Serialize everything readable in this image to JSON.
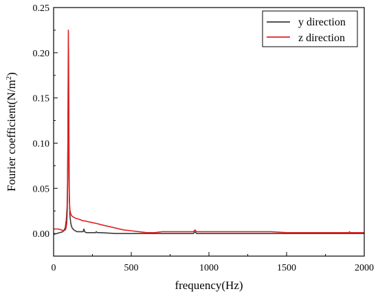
{
  "chart_data": {
    "type": "line",
    "xlabel": "frequency(Hz)",
    "ylabel_main": "Fourier coefficient(N/m",
    "ylabel_sup": "2",
    "ylabel_close": ")",
    "xlim": [
      0,
      2000
    ],
    "ylim": [
      -0.025,
      0.25
    ],
    "x_ticks": [
      0,
      500,
      1000,
      1500,
      2000
    ],
    "x_tick_labels": [
      "0",
      "500",
      "1000",
      "1500",
      "2000"
    ],
    "y_ticks": [
      0.0,
      0.05,
      0.1,
      0.15,
      0.2,
      0.25
    ],
    "y_tick_labels": [
      "0.00",
      "0.05",
      "0.10",
      "0.15",
      "0.20",
      "0.25"
    ],
    "grid": false,
    "legend_position": "top-right",
    "series": [
      {
        "name": "y direction",
        "color": "#3a3a3a",
        "x": [
          0,
          20,
          40,
          60,
          75,
          82,
          87,
          90,
          92,
          94,
          96,
          98,
          100,
          102,
          105,
          110,
          115,
          120,
          130,
          150,
          180,
          190,
          195,
          200,
          210,
          250,
          270,
          275,
          280,
          300,
          400,
          500,
          600,
          800,
          900,
          905,
          910,
          915,
          920,
          1000,
          1200,
          1500,
          1800,
          2000
        ],
        "y": [
          -0.001,
          0.0,
          0.001,
          0.002,
          0.006,
          0.015,
          0.03,
          0.06,
          0.1,
          0.16,
          0.205,
          0.13,
          0.06,
          0.035,
          0.02,
          0.012,
          0.008,
          0.006,
          0.004,
          0.002,
          0.002,
          0.002,
          0.005,
          0.002,
          0.001,
          0.001,
          0.001,
          0.002,
          0.001,
          0.001,
          0.0,
          0.0,
          0.0,
          0.0,
          0.0,
          0.001,
          0.002,
          0.001,
          0.0,
          0.0,
          0.0,
          0.0,
          0.0,
          0.0
        ]
      },
      {
        "name": "z direction",
        "color": "#e02020",
        "x": [
          0,
          30,
          50,
          65,
          75,
          80,
          85,
          88,
          90,
          92,
          94,
          95,
          96,
          98,
          100,
          102,
          105,
          110,
          115,
          120,
          140,
          160,
          190,
          200,
          250,
          280,
          300,
          350,
          400,
          450,
          500,
          550,
          600,
          650,
          700,
          800,
          900,
          905,
          910,
          915,
          920,
          950,
          1000,
          1100,
          1200,
          1300,
          1400,
          1500,
          1700,
          1800,
          1900,
          1905,
          1910,
          2000
        ],
        "y": [
          0.005,
          0.005,
          0.004,
          0.003,
          0.004,
          0.006,
          0.012,
          0.025,
          0.05,
          0.1,
          0.19,
          0.225,
          0.2,
          0.1,
          0.05,
          0.035,
          0.026,
          0.022,
          0.02,
          0.019,
          0.017,
          0.016,
          0.014,
          0.014,
          0.012,
          0.011,
          0.01,
          0.008,
          0.006,
          0.004,
          0.003,
          0.002,
          0.001,
          0.001,
          0.002,
          0.002,
          0.002,
          0.003,
          0.004,
          0.003,
          0.002,
          0.002,
          0.002,
          0.002,
          0.002,
          0.002,
          0.002,
          0.001,
          0.001,
          0.001,
          0.001,
          0.002,
          0.001,
          0.001
        ]
      }
    ]
  }
}
